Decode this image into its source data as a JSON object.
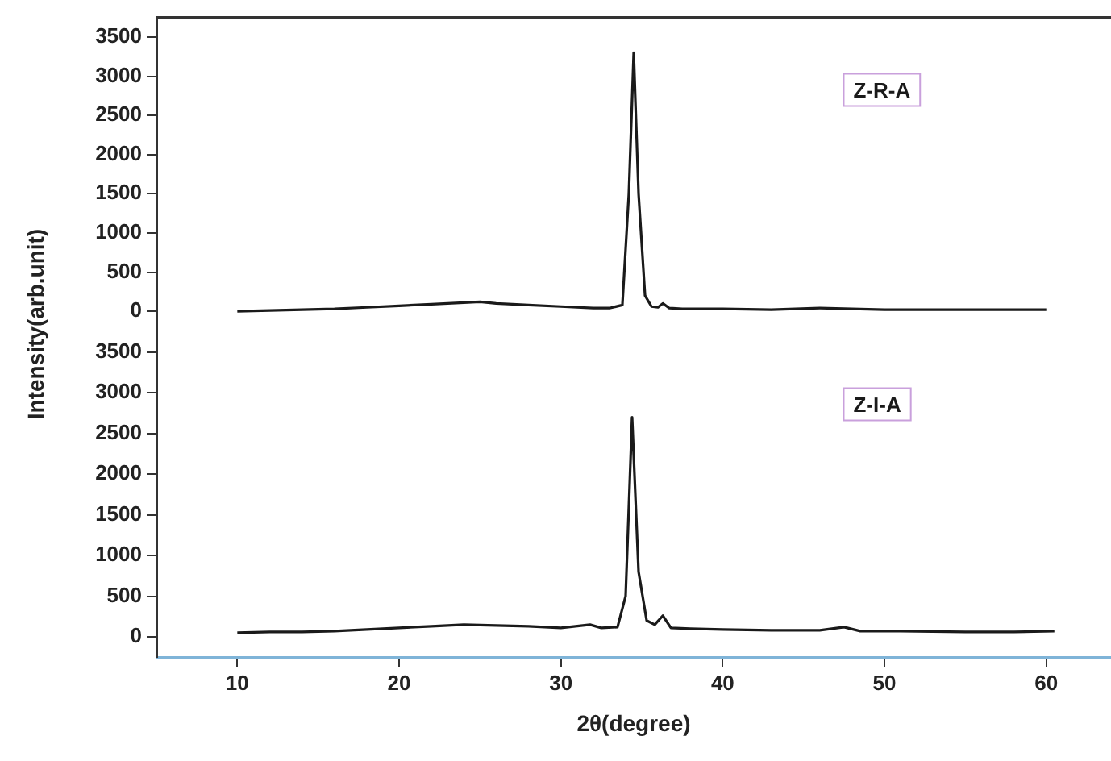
{
  "chart_data": [
    {
      "type": "line",
      "ylabel": "Intensity(arb.unit)",
      "xlim": [
        5,
        64
      ],
      "ylim": [
        -250,
        3750
      ],
      "yticks": [
        0,
        500,
        1000,
        1500,
        2000,
        2500,
        3000,
        3500
      ],
      "tick_labels": "y",
      "legend": "top right",
      "grid": false,
      "marker": "none",
      "line_style": "solid",
      "series": [
        {
          "name": "Z-R-A",
          "color": "#1a1a1a",
          "x": [
            10,
            12,
            14,
            16,
            18,
            20,
            22,
            24,
            25,
            26,
            28,
            30,
            32,
            33,
            33.8,
            34.2,
            34.5,
            34.8,
            35.2,
            35.6,
            36,
            36.3,
            36.7,
            37.5,
            40,
            43,
            46,
            50,
            54,
            58,
            60
          ],
          "values": [
            0,
            10,
            20,
            30,
            50,
            70,
            90,
            110,
            120,
            100,
            80,
            60,
            40,
            40,
            80,
            1500,
            3300,
            1500,
            200,
            60,
            50,
            100,
            40,
            30,
            30,
            20,
            40,
            20,
            20,
            20,
            20
          ]
        }
      ]
    },
    {
      "type": "line",
      "xlabel": "2θ(degree)",
      "xlim": [
        5,
        64
      ],
      "xticks": [
        10,
        20,
        30,
        40,
        50,
        60
      ],
      "ylim": [
        -250,
        3750
      ],
      "yticks": [
        0,
        500,
        1000,
        1500,
        2000,
        2500,
        3000,
        3500
      ],
      "legend": "top right",
      "grid": false,
      "marker": "none",
      "line_style": "solid",
      "series": [
        {
          "name": "Z-I-A",
          "color": "#1a1a1a",
          "x": [
            10,
            12,
            14,
            16,
            18,
            20,
            22,
            24,
            26,
            28,
            30,
            31.8,
            32.5,
            33.5,
            34,
            34.4,
            34.8,
            35.3,
            35.8,
            36.3,
            36.8,
            38,
            40,
            43,
            46,
            47.5,
            48.5,
            51,
            55,
            58,
            60.5
          ],
          "values": [
            50,
            60,
            60,
            70,
            90,
            110,
            130,
            150,
            140,
            130,
            110,
            150,
            110,
            120,
            500,
            2700,
            800,
            200,
            150,
            260,
            110,
            100,
            90,
            80,
            80,
            120,
            70,
            70,
            60,
            60,
            70
          ]
        }
      ]
    }
  ]
}
